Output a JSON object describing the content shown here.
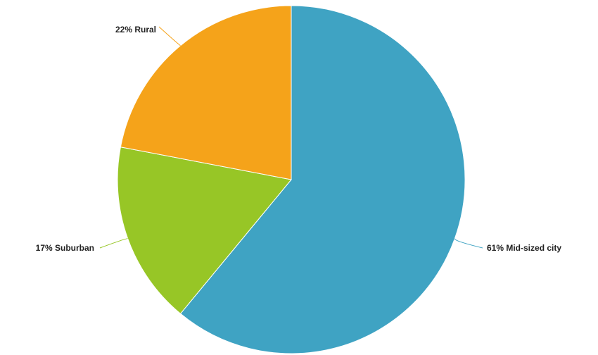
{
  "chart_data": {
    "type": "pie",
    "title": "",
    "start": "12-o-clock",
    "direction": "clockwise",
    "slices": [
      {
        "label": "Mid-sized city",
        "value": 61,
        "display": "61% Mid-sized city",
        "color": "#3fa3c3"
      },
      {
        "label": "Suburban",
        "value": 17,
        "display": "17% Suburban",
        "color": "#97c626"
      },
      {
        "label": "Rural",
        "value": 22,
        "display": "22% Rural",
        "color": "#f5a31a"
      }
    ],
    "legend": "none"
  }
}
